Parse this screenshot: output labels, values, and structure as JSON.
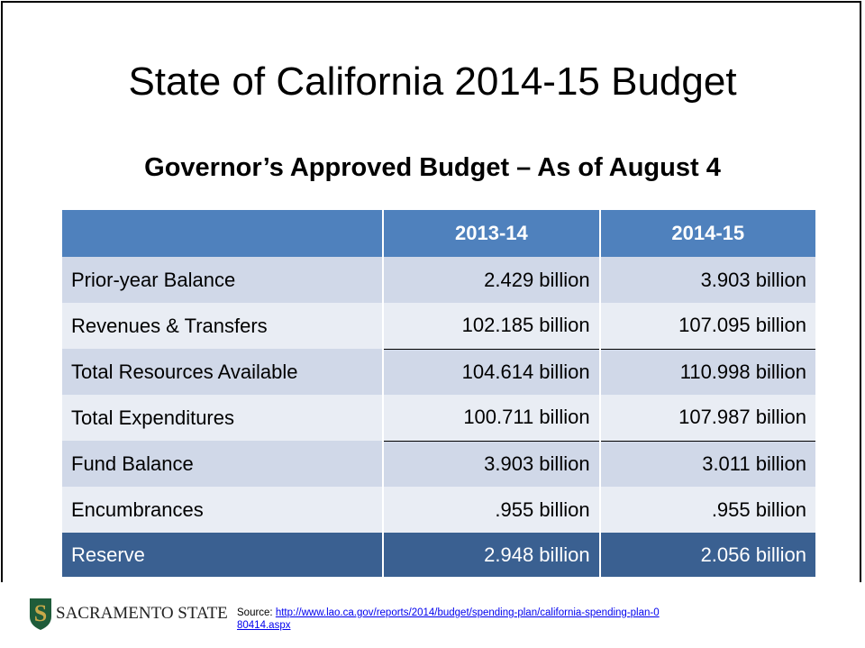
{
  "slide": {
    "title": "State of California 2014-15 Budget",
    "subtitle": "Governor’s Approved Budget – As of August 4",
    "table": {
      "header": [
        "2013-14",
        "2014-15"
      ],
      "rows": [
        [
          "Prior-year Balance",
          "2.429 billion",
          "3.903 billion"
        ],
        [
          "Revenues & Transfers",
          "102.185 billion",
          "107.095 billion"
        ],
        [
          "Total Resources Available",
          "104.614 billion",
          "110.998 billion"
        ],
        [
          "Total Expenditures",
          "100.711 billion",
          "107.987 billion"
        ],
        [
          "Fund Balance",
          "3.903 billion",
          "3.011 billion"
        ],
        [
          "Encumbrances",
          ".955 billion",
          ".955 billion"
        ],
        [
          "Reserve",
          "2.948 billion",
          "2.056 billion"
        ]
      ]
    },
    "footer": {
      "logo_text": "SACRAMENTO STATE",
      "source_label": "Source:",
      "source_url": "http://www.lao.ca.gov/reports/2014/budget/spending-plan/california-spending-plan-080414.aspx"
    }
  }
}
